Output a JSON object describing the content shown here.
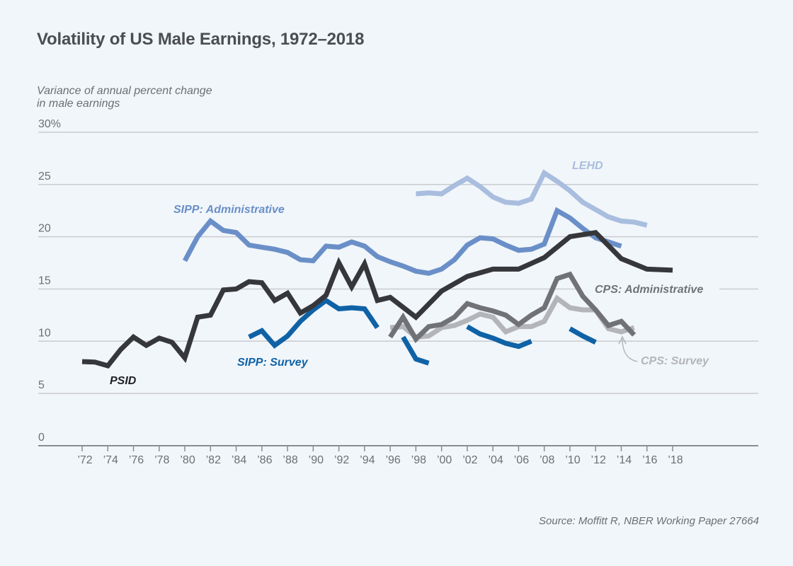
{
  "chart_data": {
    "type": "line",
    "title": "Volatility of US Male Earnings, 1972–2018",
    "ylabel": "Variance of annual percent change in male earnings",
    "xlabel": "",
    "ylim": [
      0,
      30
    ],
    "xlim": [
      1972,
      2018
    ],
    "grid": true,
    "yticks": [
      {
        "value": 0,
        "label": "0"
      },
      {
        "value": 5,
        "label": "5"
      },
      {
        "value": 10,
        "label": "10"
      },
      {
        "value": 15,
        "label": "15"
      },
      {
        "value": 20,
        "label": "20"
      },
      {
        "value": 25,
        "label": "25"
      },
      {
        "value": 30,
        "label": "30%"
      }
    ],
    "xticks": [
      {
        "value": 1972,
        "label": "’72"
      },
      {
        "value": 1974,
        "label": "’74"
      },
      {
        "value": 1976,
        "label": "’76"
      },
      {
        "value": 1978,
        "label": "’78"
      },
      {
        "value": 1980,
        "label": "’80"
      },
      {
        "value": 1982,
        "label": "’82"
      },
      {
        "value": 1984,
        "label": "’84"
      },
      {
        "value": 1986,
        "label": "’86"
      },
      {
        "value": 1988,
        "label": "’88"
      },
      {
        "value": 1990,
        "label": "’90"
      },
      {
        "value": 1992,
        "label": "’92"
      },
      {
        "value": 1994,
        "label": "’94"
      },
      {
        "value": 1996,
        "label": "’96"
      },
      {
        "value": 1998,
        "label": "’98"
      },
      {
        "value": 2000,
        "label": "’00"
      },
      {
        "value": 2002,
        "label": "’02"
      },
      {
        "value": 2004,
        "label": "’04"
      },
      {
        "value": 2006,
        "label": "’06"
      },
      {
        "value": 2008,
        "label": "’08"
      },
      {
        "value": 2010,
        "label": "’10"
      },
      {
        "value": 2012,
        "label": "’12"
      },
      {
        "value": 2014,
        "label": "’14"
      },
      {
        "value": 2016,
        "label": "’16"
      },
      {
        "value": 2018,
        "label": "’18"
      }
    ],
    "series": [
      {
        "name": "LEHD",
        "color": "#a9bddf",
        "label": "LEHD",
        "label_color": "#a9bddf",
        "segments": [
          [
            [
              1998,
              24.1
            ],
            [
              1999,
              24.2
            ],
            [
              2000,
              24.1
            ],
            [
              2001,
              24.9
            ],
            [
              2002,
              25.6
            ],
            [
              2003,
              24.8
            ],
            [
              2004,
              23.8
            ],
            [
              2005,
              23.3
            ],
            [
              2006,
              23.2
            ],
            [
              2007,
              23.6
            ],
            [
              2008,
              26.1
            ],
            [
              2009,
              25.3
            ],
            [
              2010,
              24.4
            ],
            [
              2011,
              23.3
            ],
            [
              2012,
              22.6
            ],
            [
              2013,
              21.9
            ],
            [
              2014,
              21.5
            ],
            [
              2015,
              21.4
            ],
            [
              2016,
              21.1
            ]
          ]
        ]
      },
      {
        "name": "SIPP: Administrative",
        "color": "#6a8fc8",
        "label": "SIPP: Administrative",
        "label_color": "#6a8fc8",
        "segments": [
          [
            [
              1980,
              17.7
            ],
            [
              1981,
              20.0
            ],
            [
              1982,
              21.5
            ],
            [
              1983,
              20.6
            ],
            [
              1984,
              20.4
            ],
            [
              1985,
              19.2
            ],
            [
              1986,
              19.0
            ],
            [
              1987,
              18.8
            ],
            [
              1988,
              18.5
            ],
            [
              1989,
              17.8
            ],
            [
              1990,
              17.7
            ],
            [
              1991,
              19.1
            ],
            [
              1992,
              19.0
            ],
            [
              1993,
              19.5
            ],
            [
              1994,
              19.1
            ],
            [
              1995,
              18.1
            ],
            [
              1996,
              17.6
            ],
            [
              1997,
              17.2
            ],
            [
              1998,
              16.7
            ],
            [
              1999,
              16.5
            ],
            [
              2000,
              16.9
            ],
            [
              2001,
              17.8
            ],
            [
              2002,
              19.2
            ],
            [
              2003,
              19.9
            ],
            [
              2004,
              19.8
            ],
            [
              2005,
              19.2
            ],
            [
              2006,
              18.7
            ],
            [
              2007,
              18.8
            ],
            [
              2008,
              19.3
            ],
            [
              2009,
              22.5
            ],
            [
              2010,
              21.8
            ],
            [
              2011,
              20.8
            ],
            [
              2012,
              19.9
            ],
            [
              2013,
              19.5
            ],
            [
              2014,
              19.1
            ]
          ]
        ]
      },
      {
        "name": "PSID",
        "color": "#36373a",
        "label": "PSID",
        "label_color": "#1f2023",
        "segments": [
          [
            [
              1972,
              8.05
            ],
            [
              1973,
              8.0
            ],
            [
              1974,
              7.65
            ],
            [
              1975,
              9.2
            ],
            [
              1976,
              10.4
            ],
            [
              1977,
              9.6
            ],
            [
              1978,
              10.3
            ],
            [
              1979,
              9.9
            ],
            [
              1980,
              8.4
            ],
            [
              1981,
              12.3
            ],
            [
              1982,
              12.5
            ],
            [
              1983,
              14.9
            ],
            [
              1984,
              15.0
            ],
            [
              1985,
              15.7
            ],
            [
              1986,
              15.6
            ],
            [
              1987,
              13.9
            ],
            [
              1988,
              14.6
            ],
            [
              1989,
              12.7
            ],
            [
              1990,
              13.4
            ],
            [
              1991,
              14.4
            ],
            [
              1992,
              17.5
            ],
            [
              1993,
              15.2
            ],
            [
              1994,
              17.4
            ],
            [
              1995,
              13.9
            ],
            [
              1996,
              14.2
            ],
            [
              1998,
              12.3
            ],
            [
              2000,
              14.8
            ],
            [
              2002,
              16.2
            ],
            [
              2004,
              16.9
            ],
            [
              2006,
              16.9
            ],
            [
              2008,
              18.0
            ],
            [
              2010,
              20.0
            ],
            [
              2012,
              20.4
            ],
            [
              2014,
              17.9
            ],
            [
              2016,
              16.9
            ],
            [
              2018,
              16.8
            ]
          ]
        ]
      },
      {
        "name": "CPS: Administrative",
        "color": "#707276",
        "label": "CPS: Administrative",
        "label_color": "#707276",
        "segments": [
          [
            [
              1996,
              10.4
            ],
            [
              1997,
              12.3
            ],
            [
              1998,
              10.2
            ],
            [
              1999,
              11.4
            ],
            [
              2000,
              11.6
            ],
            [
              2001,
              12.3
            ],
            [
              2002,
              13.6
            ],
            [
              2003,
              13.2
            ],
            [
              2004,
              12.9
            ],
            [
              2005,
              12.5
            ],
            [
              2006,
              11.6
            ],
            [
              2007,
              12.5
            ],
            [
              2008,
              13.2
            ],
            [
              2009,
              16.0
            ],
            [
              2010,
              16.4
            ],
            [
              2011,
              14.3
            ],
            [
              2012,
              13.0
            ],
            [
              2013,
              11.5
            ],
            [
              2014,
              11.9
            ],
            [
              2015,
              10.6
            ]
          ]
        ]
      },
      {
        "name": "CPS: Survey",
        "color": "#b3b5b8",
        "label": "CPS: Survey",
        "label_color": "#b3b5b8",
        "segments": [
          [
            [
              1996,
              11.3
            ],
            [
              1997,
              11.4
            ],
            [
              1998,
              10.4
            ],
            [
              1999,
              10.5
            ],
            [
              2000,
              11.3
            ],
            [
              2001,
              11.5
            ],
            [
              2002,
              12.0
            ],
            [
              2003,
              12.6
            ],
            [
              2004,
              12.3
            ],
            [
              2005,
              10.9
            ],
            [
              2006,
              11.4
            ],
            [
              2007,
              11.4
            ],
            [
              2008,
              11.9
            ],
            [
              2009,
              14.1
            ],
            [
              2010,
              13.2
            ],
            [
              2011,
              13.0
            ],
            [
              2012,
              13.0
            ],
            [
              2013,
              11.2
            ],
            [
              2014,
              10.9
            ],
            [
              2015,
              11.3
            ]
          ]
        ]
      },
      {
        "name": "SIPP: Survey",
        "color": "#0f62a6",
        "label": "SIPP: Survey",
        "label_color": "#0f62a6",
        "segments": [
          [
            [
              1985,
              10.4
            ],
            [
              1986,
              11.0
            ],
            [
              1987,
              9.6
            ],
            [
              1988,
              10.5
            ],
            [
              1989,
              11.9
            ],
            [
              1990,
              13.0
            ],
            [
              1991,
              13.9
            ],
            [
              1992,
              13.1
            ],
            [
              1993,
              13.2
            ],
            [
              1994,
              13.1
            ],
            [
              1995,
              11.3
            ]
          ],
          [
            [
              1997,
              10.4
            ],
            [
              1998,
              8.3
            ],
            [
              1999,
              7.9
            ]
          ],
          [
            [
              2002,
              11.4
            ],
            [
              2003,
              10.7
            ],
            [
              2004,
              10.3
            ],
            [
              2005,
              9.8
            ],
            [
              2006,
              9.5
            ],
            [
              2007,
              10.0
            ]
          ],
          [
            [
              2010,
              11.2
            ],
            [
              2011,
              10.5
            ],
            [
              2012,
              9.9
            ]
          ]
        ]
      }
    ],
    "source": "Source: Moffitt R, NBER Working Paper 27664"
  }
}
